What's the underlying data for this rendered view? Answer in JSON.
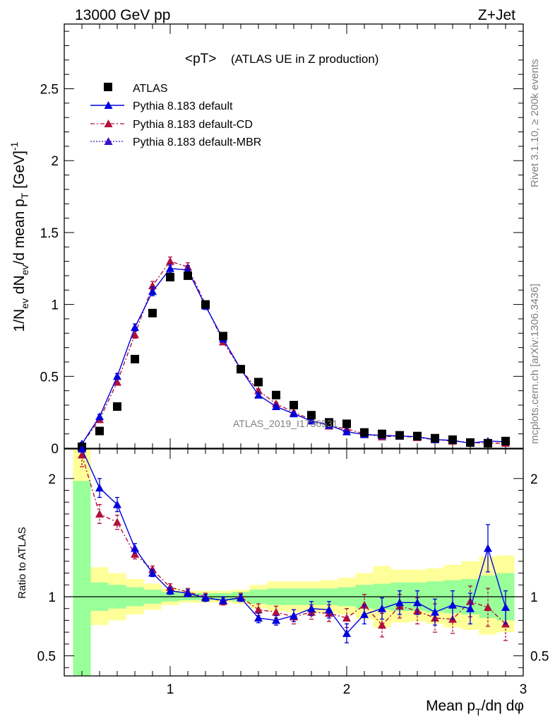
{
  "header": {
    "left": "13000 GeV pp",
    "right": "Z+Jet"
  },
  "side": {
    "rivet": "Rivet 3.1.10, ≥ 200k events",
    "mcplots": "mcplots.cern.ch [arXiv:1306.3436]"
  },
  "colors": {
    "data": "#000000",
    "default": "#0000dd",
    "cd": "#b0103a",
    "mbr": "#3a10c8",
    "band1": "#99ff99",
    "band2": "#ffff99"
  },
  "chart_data": [
    {
      "type": "scatter",
      "title": "<pT> (ATLAS UE in Z production)",
      "title_main": "<pT>",
      "title_sub": "(ATLAS UE in Z production)",
      "watermark": "ATLAS_2019_I1736531",
      "ylabel": "1/N_ev dN_ev/d mean p_T [GeV]^-1",
      "ylabel_parts": {
        "a": "1/N",
        "a_sub": "ev",
        "b": " dN",
        "b_sub": "ev",
        "c": "/d mean p",
        "c_sub": "T",
        "d": " [GeV]",
        "d_sup": "-1"
      },
      "xlim": [
        0.4,
        3.0
      ],
      "ylim": [
        0,
        2.95
      ],
      "yticks": [
        0,
        0.5,
        1,
        1.5,
        2,
        2.5
      ],
      "ytick_labels": [
        "0",
        "0.5",
        "1",
        "1.5",
        "2",
        "2.5"
      ],
      "x": [
        0.5,
        0.6,
        0.7,
        0.8,
        0.9,
        1.0,
        1.1,
        1.2,
        1.3,
        1.4,
        1.5,
        1.6,
        1.7,
        1.8,
        1.9,
        2.0,
        2.1,
        2.2,
        2.3,
        2.4,
        2.5,
        2.6,
        2.7,
        2.8,
        2.9
      ],
      "legend": [
        "ATLAS",
        "Pythia 8.183 default",
        "Pythia 8.183 default-CD",
        "Pythia 8.183 default-MBR"
      ],
      "series": [
        {
          "name": "ATLAS",
          "values": [
            0.01,
            0.12,
            0.29,
            0.62,
            0.94,
            1.19,
            1.2,
            1.0,
            0.78,
            0.55,
            0.46,
            0.37,
            0.3,
            0.23,
            0.18,
            0.17,
            0.11,
            0.1,
            0.09,
            0.085,
            0.07,
            0.06,
            0.04,
            0.035,
            0.05
          ]
        },
        {
          "name": "Pythia 8.183 default",
          "values": [
            0.03,
            0.22,
            0.5,
            0.84,
            1.09,
            1.25,
            1.24,
            0.99,
            0.76,
            0.55,
            0.37,
            0.29,
            0.24,
            0.19,
            0.16,
            0.115,
            0.095,
            0.09,
            0.085,
            0.08,
            0.06,
            0.055,
            0.035,
            0.05,
            0.045
          ],
          "errors": [
            0.01,
            0.015,
            0.02,
            0.025,
            0.03,
            0.03,
            0.03,
            0.025,
            0.02,
            0.015,
            0.012,
            0.01,
            0.01,
            0.01,
            0.008,
            0.008,
            0.007,
            0.007,
            0.006,
            0.006,
            0.005,
            0.005,
            0.004,
            0.005,
            0.005
          ]
        },
        {
          "name": "Pythia 8.183 default-CD",
          "values": [
            0.03,
            0.2,
            0.46,
            0.79,
            1.13,
            1.3,
            1.26,
            1.0,
            0.74,
            0.55,
            0.4,
            0.31,
            0.25,
            0.2,
            0.155,
            0.135,
            0.1,
            0.08,
            0.085,
            0.075,
            0.06,
            0.05,
            0.04,
            0.035,
            0.035
          ],
          "errors": [
            0.01,
            0.015,
            0.02,
            0.025,
            0.03,
            0.03,
            0.03,
            0.025,
            0.02,
            0.015,
            0.012,
            0.01,
            0.01,
            0.01,
            0.008,
            0.008,
            0.007,
            0.007,
            0.006,
            0.006,
            0.005,
            0.005,
            0.004,
            0.005,
            0.005
          ]
        }
      ]
    },
    {
      "type": "scatter",
      "ylabel": "Ratio to ATLAS",
      "xlabel": "Mean p_T/dη dφ",
      "xlabel_parts": {
        "a": "Mean p",
        "a_sub": "T",
        "b": "/dη dφ"
      },
      "xlim": [
        0.4,
        3.0
      ],
      "ylim": [
        0.33,
        2.25
      ],
      "xticks": [
        1,
        2,
        3
      ],
      "xtick_labels": [
        "1",
        "2",
        "3"
      ],
      "yticks": [
        0.5,
        1,
        2
      ],
      "ytick_labels": [
        "0.5",
        "1",
        "2"
      ],
      "bin_edges": [
        0.45,
        0.55,
        0.65,
        0.75,
        0.85,
        0.95,
        1.05,
        1.15,
        1.25,
        1.35,
        1.45,
        1.55,
        1.65,
        1.75,
        1.85,
        1.95,
        2.05,
        2.15,
        2.25,
        2.35,
        2.45,
        2.55,
        2.65,
        2.75,
        2.85,
        2.95
      ],
      "band_inner": {
        "lo": [
          0.3,
          0.88,
          0.9,
          0.92,
          0.94,
          0.96,
          0.97,
          0.97,
          0.97,
          0.96,
          0.94,
          0.93,
          0.93,
          0.93,
          0.93,
          0.92,
          0.9,
          0.89,
          0.88,
          0.88,
          0.87,
          0.86,
          0.85,
          0.82,
          0.8
        ],
        "hi": [
          1.98,
          1.12,
          1.1,
          1.08,
          1.06,
          1.04,
          1.03,
          1.03,
          1.03,
          1.04,
          1.06,
          1.07,
          1.07,
          1.07,
          1.07,
          1.08,
          1.1,
          1.11,
          1.12,
          1.12,
          1.13,
          1.14,
          1.15,
          1.18,
          1.2
        ]
      },
      "band_outer": {
        "lo": [
          0.3,
          0.76,
          0.8,
          0.85,
          0.89,
          0.93,
          0.95,
          0.95,
          0.95,
          0.94,
          0.9,
          0.88,
          0.87,
          0.87,
          0.86,
          0.85,
          0.81,
          0.74,
          0.78,
          0.79,
          0.77,
          0.74,
          0.72,
          0.68,
          0.7
        ],
        "hi": [
          2.25,
          1.25,
          1.2,
          1.15,
          1.11,
          1.07,
          1.05,
          1.05,
          1.05,
          1.06,
          1.1,
          1.13,
          1.13,
          1.13,
          1.14,
          1.16,
          1.2,
          1.26,
          1.23,
          1.23,
          1.24,
          1.27,
          1.3,
          1.34,
          1.35
        ]
      },
      "x": [
        0.5,
        0.6,
        0.7,
        0.8,
        0.9,
        1.0,
        1.1,
        1.2,
        1.3,
        1.4,
        1.5,
        1.6,
        1.7,
        1.8,
        1.9,
        2.0,
        2.1,
        2.2,
        2.3,
        2.4,
        2.5,
        2.6,
        2.7,
        2.8,
        2.9
      ],
      "series": [
        {
          "name": "Pythia 8.183 default",
          "values": [
            2.33,
            1.92,
            1.78,
            1.41,
            1.2,
            1.05,
            1.03,
            0.99,
            0.97,
            0.99,
            0.82,
            0.8,
            0.84,
            0.9,
            0.89,
            0.69,
            0.85,
            0.9,
            0.95,
            0.95,
            0.87,
            0.93,
            0.9,
            1.41,
            0.91
          ],
          "errors": [
            0.1,
            0.08,
            0.06,
            0.04,
            0.03,
            0.03,
            0.03,
            0.03,
            0.03,
            0.03,
            0.04,
            0.04,
            0.05,
            0.06,
            0.07,
            0.08,
            0.08,
            0.09,
            0.1,
            0.1,
            0.11,
            0.12,
            0.13,
            0.2,
            0.14
          ]
        },
        {
          "name": "Pythia 8.183 default-CD",
          "values": [
            2.2,
            1.7,
            1.63,
            1.36,
            1.23,
            1.08,
            1.04,
            1.0,
            0.96,
            1.0,
            0.89,
            0.87,
            0.83,
            0.87,
            0.86,
            0.82,
            0.93,
            0.76,
            0.92,
            0.88,
            0.82,
            0.81,
            0.96,
            0.91,
            0.77
          ],
          "errors": [
            0.1,
            0.08,
            0.06,
            0.04,
            0.03,
            0.03,
            0.03,
            0.03,
            0.03,
            0.03,
            0.05,
            0.05,
            0.06,
            0.06,
            0.07,
            0.08,
            0.09,
            0.1,
            0.1,
            0.11,
            0.12,
            0.12,
            0.13,
            0.16,
            0.14
          ]
        }
      ]
    }
  ]
}
